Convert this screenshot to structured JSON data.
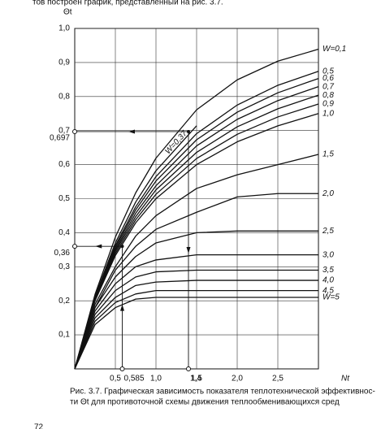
{
  "chart_data": {
    "type": "line",
    "header_text": "тов построен график, представленный на рис. 3.7.",
    "y_label": "Θt",
    "x_label": "Nt",
    "caption": [
      "Рис. 3.7. Графическая зависимость показателя теплотехнической эффективнос-",
      "ти Θt для противоточной схемы движения теплообменивающихся сред"
    ],
    "page_number": "72",
    "xlim": [
      0,
      3
    ],
    "ylim": [
      0,
      1
    ],
    "xticks": [
      {
        "value": 0.5,
        "label": "0,5"
      },
      {
        "value": 1.0,
        "label": "1,0"
      },
      {
        "value": 1.5,
        "label": "1,5"
      },
      {
        "value": 2.0,
        "label": "2,0"
      },
      {
        "value": 2.5,
        "label": "2,5"
      }
    ],
    "yticks": [
      {
        "value": 0.1,
        "label": "0,1"
      },
      {
        "value": 0.2,
        "label": "0,2"
      },
      {
        "value": 0.3,
        "label": "0,3"
      },
      {
        "value": 0.4,
        "label": "0,4"
      },
      {
        "value": 0.5,
        "label": "0,5"
      },
      {
        "value": 0.6,
        "label": "0,6"
      },
      {
        "value": 0.7,
        "label": "0,7"
      },
      {
        "value": 0.8,
        "label": "0,8"
      },
      {
        "value": 0.9,
        "label": "0,9"
      },
      {
        "value": 1.0,
        "label": "1,0"
      }
    ],
    "grid": true,
    "color": "#111111",
    "x": [
      0,
      0.25,
      0.5,
      0.75,
      1.0,
      1.5,
      2.0,
      2.5,
      3.0
    ],
    "series": [
      {
        "name": "W=0,1",
        "values": [
          0,
          0.219,
          0.387,
          0.517,
          0.619,
          0.761,
          0.849,
          0.904,
          0.939
        ]
      },
      {
        "name": "0,5",
        "values": [
          0,
          0.21,
          0.362,
          0.476,
          0.565,
          0.691,
          0.775,
          0.833,
          0.874
        ]
      },
      {
        "name": "0,6",
        "values": [
          0,
          0.208,
          0.356,
          0.467,
          0.552,
          0.673,
          0.754,
          0.811,
          0.853
        ]
      },
      {
        "name": "0,7",
        "values": [
          0,
          0.206,
          0.35,
          0.457,
          0.538,
          0.655,
          0.733,
          0.788,
          0.829
        ]
      },
      {
        "name": "0,8",
        "values": [
          0,
          0.204,
          0.345,
          0.447,
          0.526,
          0.636,
          0.711,
          0.764,
          0.804
        ]
      },
      {
        "name": "0,9",
        "values": [
          0,
          0.202,
          0.339,
          0.438,
          0.513,
          0.618,
          0.689,
          0.74,
          0.778
        ]
      },
      {
        "name": "1,0",
        "values": [
          0,
          0.2,
          0.333,
          0.429,
          0.5,
          0.6,
          0.667,
          0.714,
          0.75
        ]
      },
      {
        "name": "1,5",
        "values": [
          0,
          0.19,
          0.3,
          0.39,
          0.45,
          0.53,
          0.57,
          0.6,
          0.63
        ]
      },
      {
        "name": "2,0",
        "values": [
          0,
          0.18,
          0.29,
          0.36,
          0.41,
          0.46,
          0.505,
          0.515,
          0.515
        ]
      },
      {
        "name": "2,5",
        "values": [
          0,
          0.18,
          0.27,
          0.33,
          0.37,
          0.4,
          0.405,
          0.405,
          0.405
        ]
      },
      {
        "name": "3,0",
        "values": [
          0,
          0.17,
          0.25,
          0.3,
          0.32,
          0.335,
          0.335,
          0.335,
          0.335
        ]
      },
      {
        "name": "3,5",
        "values": [
          0,
          0.16,
          0.23,
          0.27,
          0.285,
          0.29,
          0.29,
          0.29,
          0.29
        ]
      },
      {
        "name": "4,0",
        "values": [
          0,
          0.15,
          0.21,
          0.245,
          0.255,
          0.26,
          0.26,
          0.26,
          0.26
        ]
      },
      {
        "name": "4,5",
        "values": [
          0,
          0.14,
          0.195,
          0.22,
          0.23,
          0.23,
          0.23,
          0.23,
          0.23
        ]
      },
      {
        "name": "W=5",
        "values": [
          0,
          0.13,
          0.18,
          0.205,
          0.21,
          0.21,
          0.21,
          0.21,
          0.21
        ]
      },
      {
        "name": "W=0,37",
        "inline_label": true,
        "values": [
          0,
          0.213,
          0.37,
          0.49,
          0.582,
          0.714,
          null,
          null,
          null
        ]
      }
    ],
    "annotations": [
      {
        "x": 1.4,
        "y": 0.697,
        "x_label": "1,4",
        "y_label": "0,697"
      },
      {
        "x": 0.585,
        "y": 0.36,
        "x_label": "0,585",
        "y_label": "0,36"
      }
    ]
  }
}
